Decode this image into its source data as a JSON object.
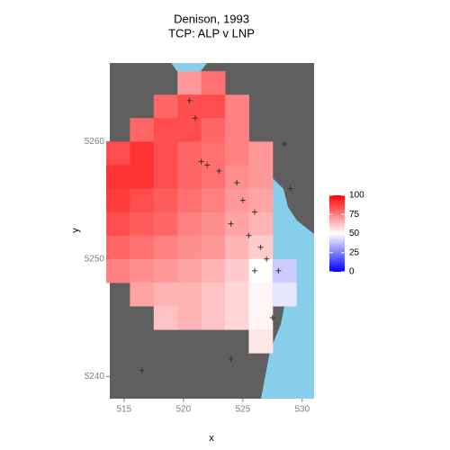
{
  "chart_data": {
    "type": "raster",
    "title": "Denison, 1993",
    "subtitle": "TCP: ALP v LNP",
    "x_label": "x",
    "y_label": "y",
    "x": [
      514.5,
      516.5,
      518.5,
      520.5,
      522.5,
      524.5,
      526.5,
      528.5,
      530.5
    ],
    "y": [
      5265,
      5263,
      5261,
      5259,
      5257,
      5255,
      5253,
      5251,
      5249,
      5247,
      5245,
      5243,
      5241,
      5239
    ],
    "values": [
      [
        null,
        null,
        null,
        70,
        78,
        null,
        null,
        null,
        null
      ],
      [
        null,
        null,
        80,
        85,
        85,
        75,
        null,
        null,
        null
      ],
      [
        null,
        80,
        85,
        85,
        80,
        75,
        null,
        null,
        null
      ],
      [
        85,
        90,
        85,
        80,
        78,
        75,
        70,
        null,
        null
      ],
      [
        90,
        90,
        85,
        80,
        78,
        72,
        70,
        null,
        null
      ],
      [
        88,
        85,
        82,
        78,
        75,
        70,
        68,
        null,
        null
      ],
      [
        85,
        82,
        80,
        75,
        72,
        68,
        65,
        null,
        null
      ],
      [
        80,
        78,
        75,
        72,
        70,
        65,
        60,
        null,
        null
      ],
      [
        75,
        72,
        70,
        68,
        65,
        60,
        50,
        40,
        null
      ],
      [
        null,
        68,
        65,
        65,
        62,
        58,
        52,
        45,
        null
      ],
      [
        null,
        null,
        62,
        65,
        62,
        58,
        52,
        null,
        null
      ],
      [
        null,
        null,
        null,
        null,
        null,
        null,
        55,
        null,
        null
      ],
      [
        null,
        null,
        null,
        null,
        null,
        null,
        null,
        null,
        null
      ],
      [
        null,
        null,
        null,
        null,
        null,
        null,
        null,
        null,
        null
      ]
    ],
    "points": {
      "x": [
        521,
        520.5,
        522,
        521.5,
        523,
        524.5,
        525,
        526,
        524,
        525.5,
        526.5,
        527,
        526,
        528.5,
        529,
        527.5,
        524,
        516.5,
        528
      ],
      "y": [
        5262,
        5263.5,
        5258,
        5258.3,
        5257.5,
        5256.5,
        5255,
        5254,
        5253,
        5252,
        5251,
        5250,
        5249,
        5259.8,
        5256,
        5245,
        5241.5,
        5240.5,
        5249
      ]
    },
    "xlim": [
      513.8,
      531
    ],
    "ylim": [
      5238.1,
      5266.7
    ],
    "xticks": [
      515,
      520,
      525,
      530
    ],
    "yticks": [
      5240,
      5250,
      5260
    ],
    "fill_lim": [
      0,
      100
    ],
    "fill_ticks": [
      0,
      25,
      50,
      75,
      100
    ],
    "colors": {
      "low": "#0000ff",
      "mid": "#ffffff",
      "high": "#ff0000"
    },
    "panel_color": "#5f5f5f",
    "water_color": "#87ceeb"
  }
}
